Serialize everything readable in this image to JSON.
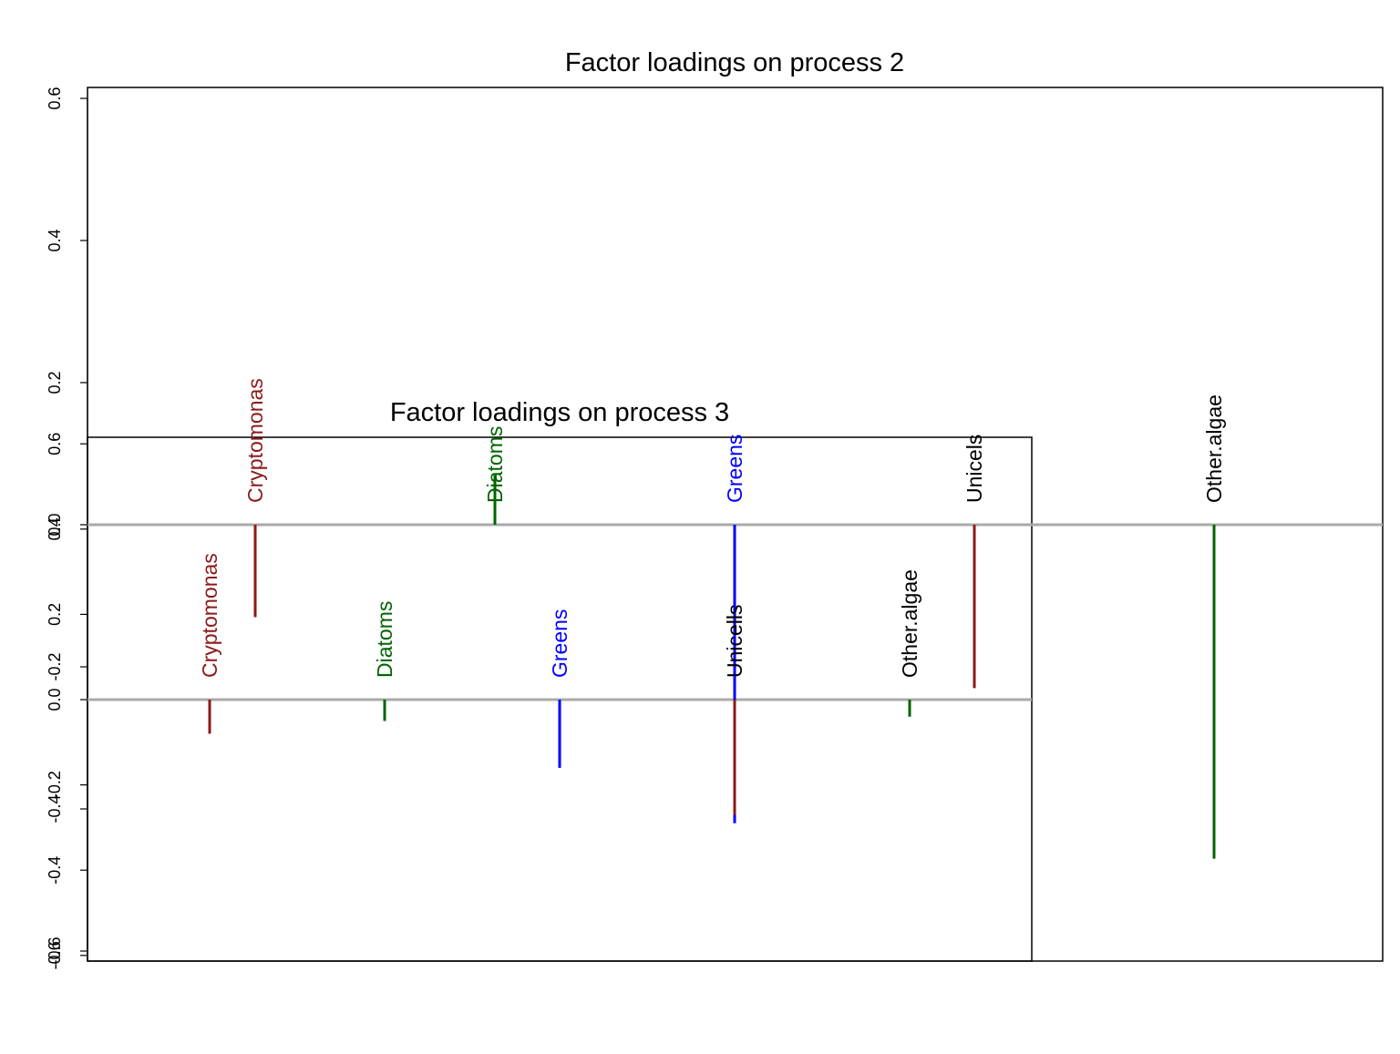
{
  "colors": {
    "Cryptomonas": "#8B1A1A",
    "Diatoms": "#006400",
    "Greens": "#0000FF",
    "Unicells": "#000000",
    "Other.algae": "#000000",
    "zero_line": "#aaaaaa",
    "Diatoms_bar": "#006400",
    "Other.algae_bar": "#006400",
    "Unicells_bar_p2": "#8B1A1A",
    "Unicells_bar_p3": "#8B1A1A"
  },
  "chart_data": [
    {
      "type": "bar",
      "title": "Factor loadings on process 2",
      "xlabel": "",
      "ylabel": "",
      "ylim": [
        -0.6,
        0.6
      ],
      "yticks": [
        "-0.6",
        "-0.4",
        "-0.2",
        "0.0",
        "0.2",
        "0.4",
        "0.6"
      ],
      "categories": [
        "Cryptomonas",
        "Diatoms",
        "Greens",
        "Unicels",
        "Other.algae"
      ],
      "values": [
        -0.13,
        0.07,
        -0.42,
        -0.23,
        -0.47
      ],
      "label_colors": [
        "#8B1A1A",
        "#006400",
        "#0000FF",
        "#000000",
        "#000000"
      ],
      "bar_colors": [
        "#8B1A1A",
        "#006400",
        "#0000FF",
        "#8B1A1A",
        "#006400"
      ]
    },
    {
      "type": "bar",
      "title": "Factor loadings on process 3",
      "xlabel": "",
      "ylabel": "",
      "ylim": [
        -0.6,
        0.6
      ],
      "yticks": [
        "-0.6",
        "-0.4",
        "-0.2",
        "0.0",
        "0.2",
        "0.4",
        "0.6"
      ],
      "categories": [
        "Cryptomonas",
        "Diatoms",
        "Greens",
        "Unicells",
        "Other.algae"
      ],
      "values": [
        -0.08,
        -0.05,
        -0.16,
        -0.27,
        -0.04
      ],
      "label_colors": [
        "#8B1A1A",
        "#006400",
        "#0000FF",
        "#000000",
        "#000000"
      ],
      "bar_colors": [
        "#8B1A1A",
        "#006400",
        "#0000FF",
        "#8B1A1A",
        "#006400"
      ]
    }
  ]
}
